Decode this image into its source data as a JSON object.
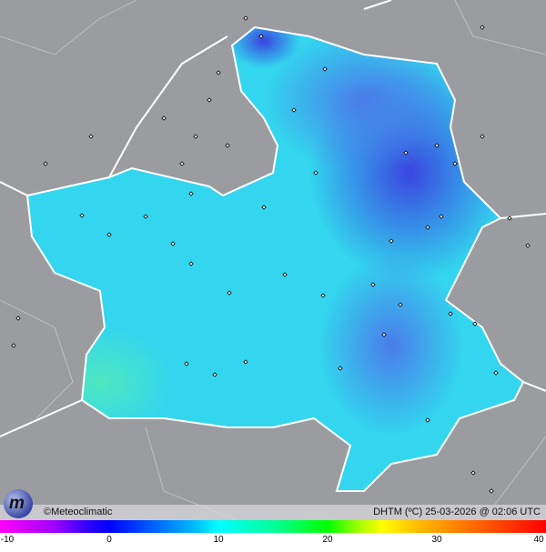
{
  "map": {
    "credit": "©Meteoclimatic",
    "caption": "DHTM (ºC) 25-03-2026 @ 02:06 UTC",
    "logo_text": "m",
    "colors": {
      "background": "#9a9ca0",
      "region_base": "#33d6ee",
      "region_cold": "#3a5ce8"
    }
  },
  "colorbar": {
    "ticks": [
      {
        "value": -10,
        "label": "-10"
      },
      {
        "value": 0,
        "label": "0"
      },
      {
        "value": 10,
        "label": "10"
      },
      {
        "value": 20,
        "label": "20"
      },
      {
        "value": 30,
        "label": "30"
      },
      {
        "value": 40,
        "label": "40"
      }
    ],
    "range": [
      -10,
      40
    ]
  }
}
